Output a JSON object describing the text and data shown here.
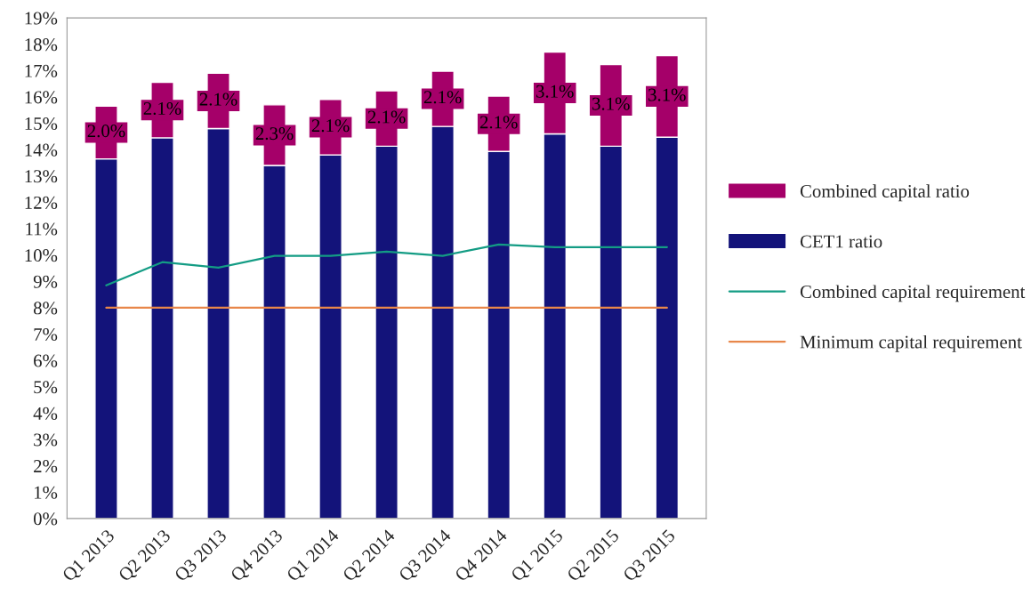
{
  "chart_data": {
    "type": "bar",
    "stacked": true,
    "categories": [
      "Q1 2013",
      "Q2 2013",
      "Q3 2013",
      "Q4 2013",
      "Q1 2014",
      "Q2 2014",
      "Q3 2014",
      "Q4 2014",
      "Q1 2015",
      "Q2 2015",
      "Q3 2015"
    ],
    "series": [
      {
        "name": "CET1 ratio",
        "color": "#13137a",
        "values": [
          13.65,
          14.45,
          14.8,
          13.4,
          13.8,
          14.13,
          14.88,
          13.93,
          14.6,
          14.13,
          14.47
        ]
      },
      {
        "name": "Combined capital ratio",
        "color": "#a50069",
        "values": [
          2.0,
          2.1,
          2.1,
          2.3,
          2.1,
          2.1,
          2.1,
          2.1,
          3.1,
          3.1,
          3.1
        ],
        "value_labels": [
          "2.0%",
          "2.1%",
          "2.1%",
          "2.3%",
          "2.1%",
          "2.1%",
          "2.1%",
          "2.1%",
          "3.1%",
          "3.1%",
          "3.1%"
        ]
      },
      {
        "name": "Combined capital requirement",
        "type": "line",
        "color": "#139c84",
        "values": [
          8.85,
          9.73,
          9.52,
          9.97,
          9.97,
          10.13,
          9.97,
          10.4,
          10.3,
          10.3,
          10.3
        ]
      },
      {
        "name": "Minimum capital requirement",
        "type": "line",
        "color": "#e8874a",
        "values": [
          8,
          8,
          8,
          8,
          8,
          8,
          8,
          8,
          8,
          8,
          8
        ]
      }
    ],
    "ylim": [
      0,
      19
    ],
    "yticks": [
      {
        "value": 0,
        "label": "0%"
      },
      {
        "value": 1,
        "label": "1%"
      },
      {
        "value": 2,
        "label": "2%"
      },
      {
        "value": 3,
        "label": "3%"
      },
      {
        "value": 4,
        "label": "4%"
      },
      {
        "value": 5,
        "label": "5%"
      },
      {
        "value": 6,
        "label": "6%"
      },
      {
        "value": 7,
        "label": "7%"
      },
      {
        "value": 8,
        "label": "8%"
      },
      {
        "value": 9,
        "label": "9%"
      },
      {
        "value": 10,
        "label": "10%"
      },
      {
        "value": 11,
        "label": "11%"
      },
      {
        "value": 12,
        "label": "12%"
      },
      {
        "value": 13,
        "label": "13%"
      },
      {
        "value": 14,
        "label": "14%"
      },
      {
        "value": 15,
        "label": "15%"
      },
      {
        "value": 16,
        "label": "16%"
      },
      {
        "value": 17,
        "label": "17%"
      },
      {
        "value": 18,
        "label": "18%"
      },
      {
        "value": 19,
        "label": "19%"
      }
    ],
    "legend": "right"
  }
}
